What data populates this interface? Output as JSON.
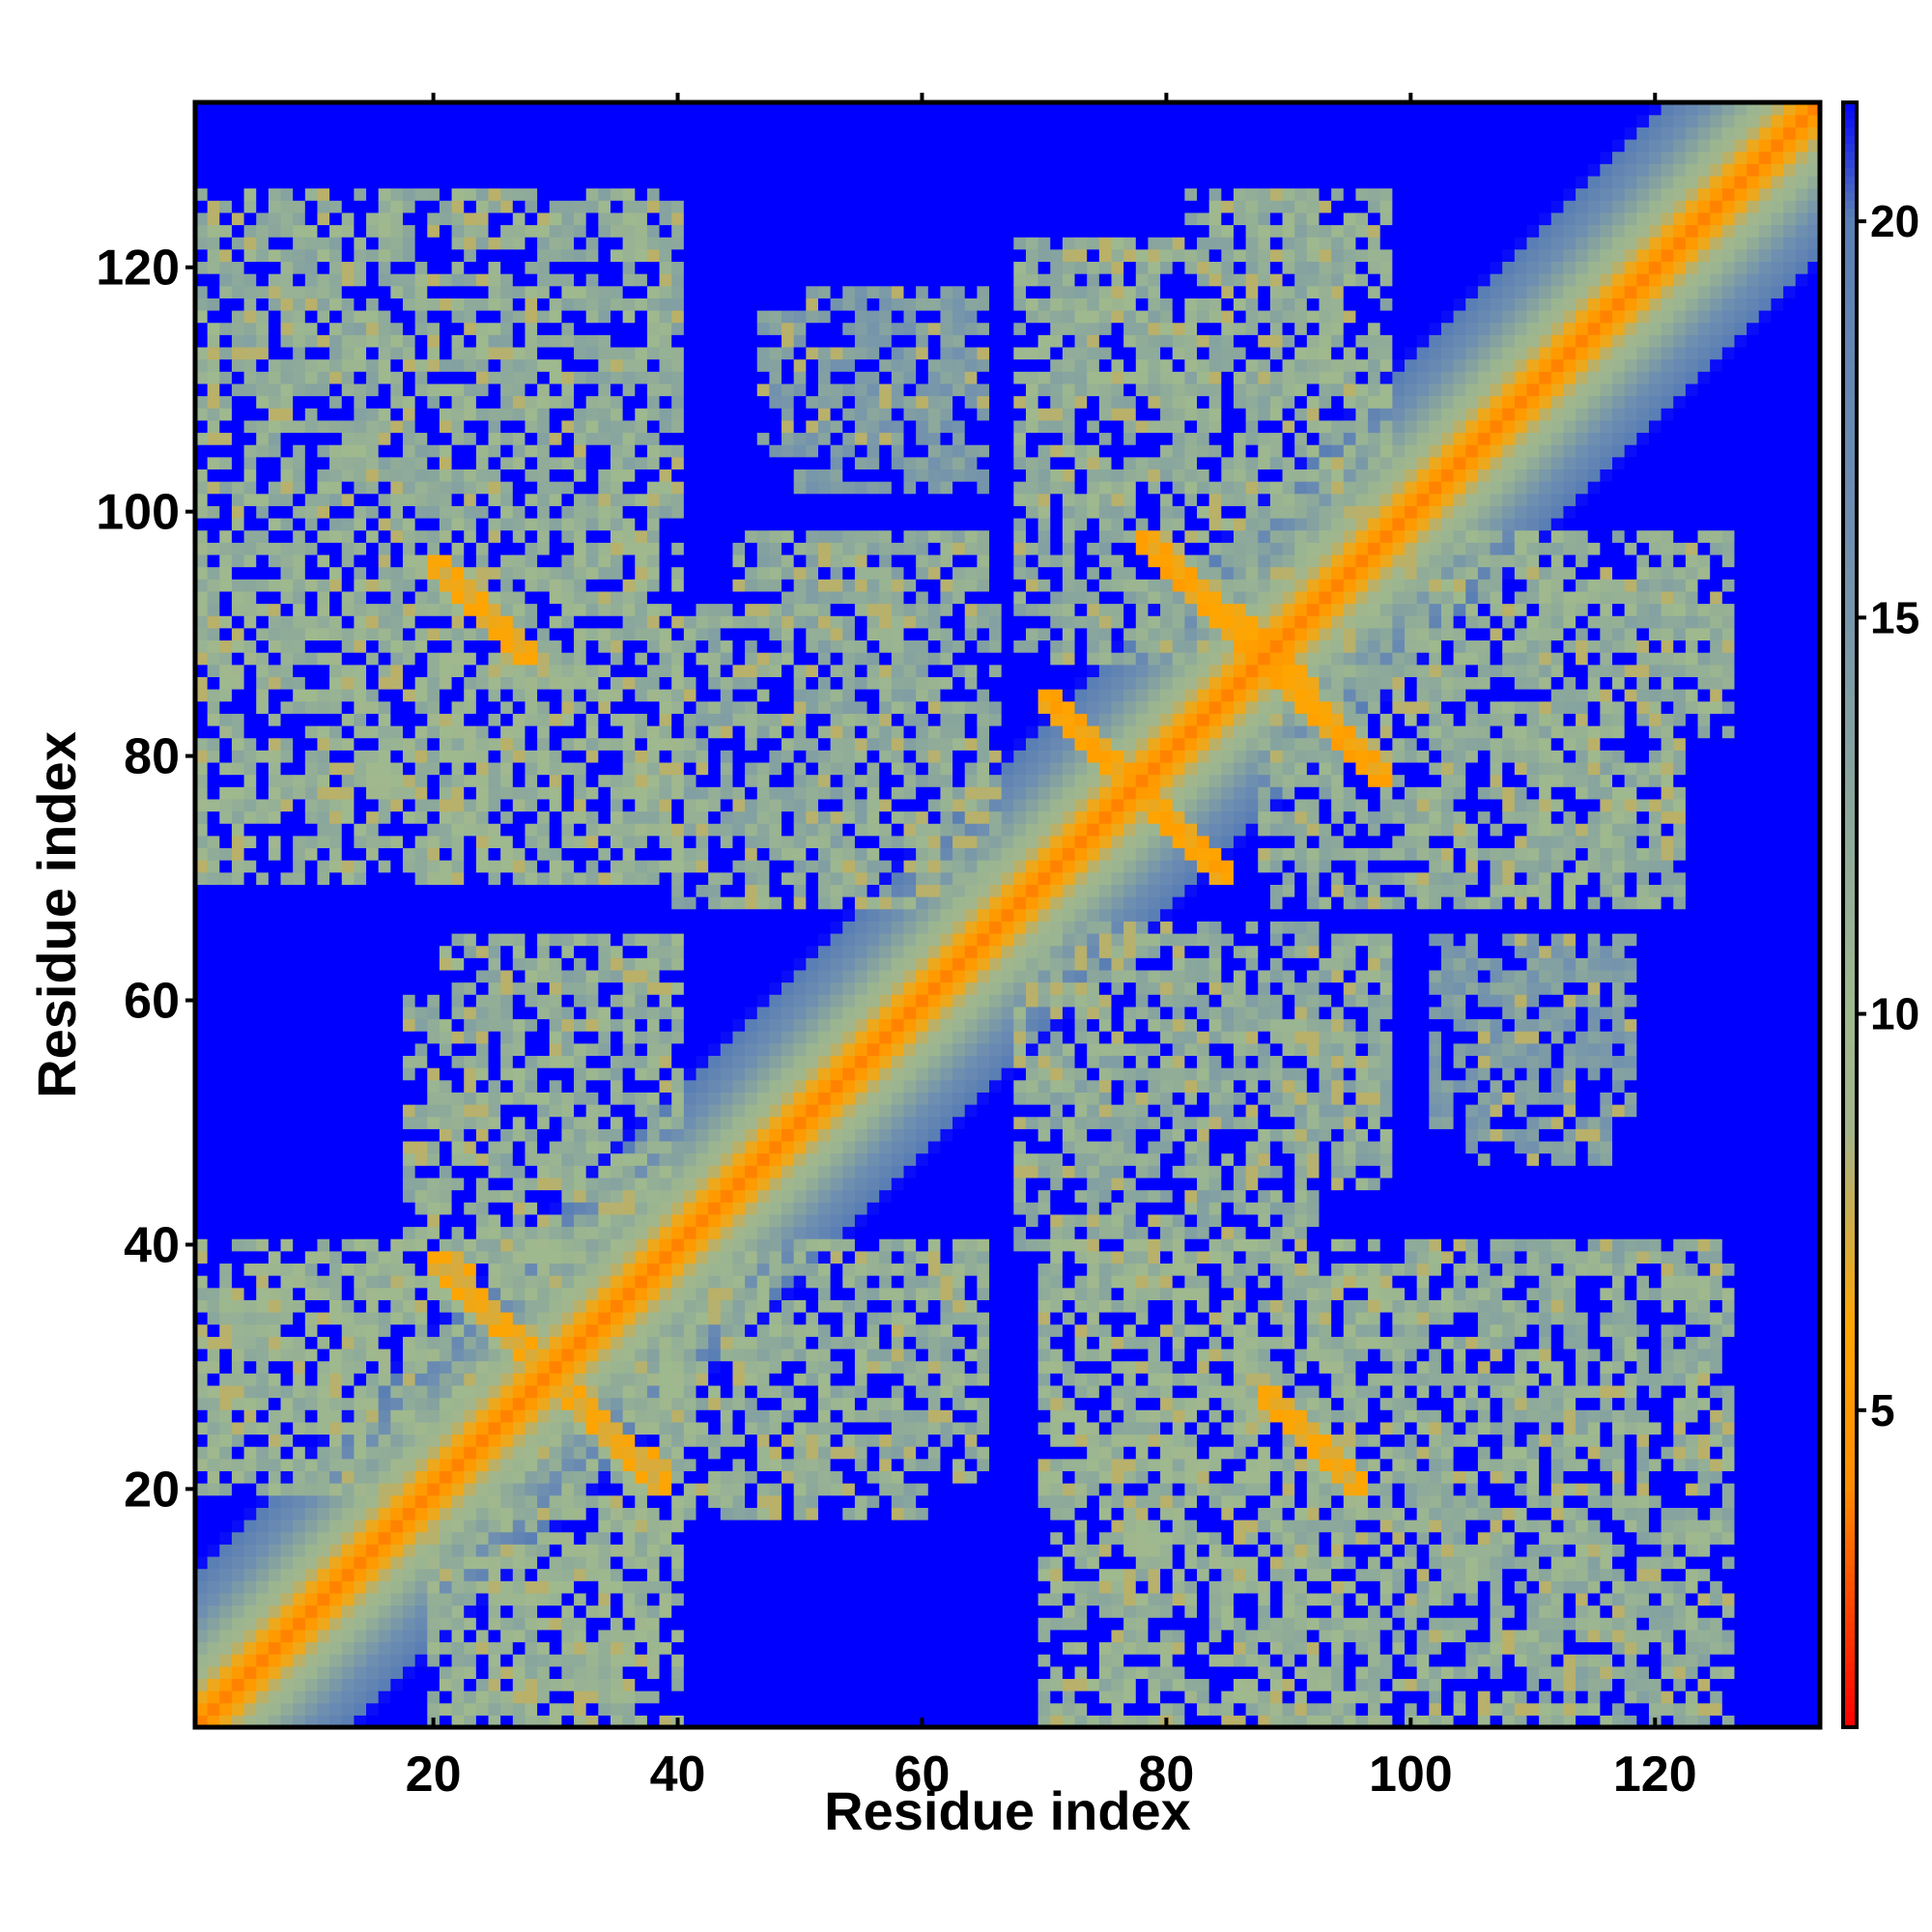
{
  "chart_data": {
    "type": "heatmap",
    "title": "",
    "xlabel": "Residue index",
    "ylabel": "Residue index",
    "n_residues": 133,
    "xlim": [
      1,
      133
    ],
    "ylim": [
      1,
      133
    ],
    "xticks": [
      20,
      40,
      60,
      80,
      100,
      120
    ],
    "yticks": [
      20,
      40,
      60,
      80,
      100,
      120
    ],
    "x_tick_labels": [
      "20",
      "40",
      "60",
      "80",
      "100",
      "120"
    ],
    "y_tick_labels": [
      "20",
      "40",
      "60",
      "80",
      "100",
      "120"
    ],
    "colorbar": {
      "range": [
        1,
        21.5
      ],
      "ticks": [
        5,
        10,
        15,
        20
      ],
      "tick_labels": [
        "5",
        "10",
        "15",
        "20"
      ],
      "colors": [
        "#ff0000",
        "#ff8c00",
        "#ffa500",
        "#a3b48b",
        "#9fb98e",
        "#6f8fb0",
        "#5a7fb5",
        "#0000ff"
      ],
      "value_stops": [
        1,
        4,
        6,
        8.5,
        10,
        16,
        20,
        21.5
      ]
    },
    "symmetric": true,
    "diagonal_band": {
      "distance_at_diagonal": 3.8,
      "growth_per_residue": 1.35
    },
    "contact_features": [
      {
        "type": "antiparallel",
        "x_range": [
          20,
          28
        ],
        "y_range": [
          88,
          96
        ],
        "value": 6.5
      },
      {
        "type": "antiparallel",
        "x_range": [
          20,
          28
        ],
        "y_range": [
          31,
          39
        ],
        "value": 6.5
      },
      {
        "type": "antiparallel",
        "x_range": [
          30,
          39
        ],
        "y_range": [
          21,
          29
        ],
        "value": 6.5
      },
      {
        "type": "antiparallel",
        "x_range": [
          71,
          85
        ],
        "y_range": [
          70,
          84
        ],
        "value": 6.0
      },
      {
        "type": "antiparallel",
        "x_range": [
          78,
          87
        ],
        "y_range": [
          89,
          98
        ],
        "value": 6.0
      },
      {
        "type": "antiparallel",
        "x_range": [
          89,
          98
        ],
        "y_range": [
          78,
          88
        ],
        "value": 6.0
      },
      {
        "type": "antiparallel",
        "x_range": [
          88,
          96
        ],
        "y_range": [
          20,
          28
        ],
        "value": 6.5
      }
    ],
    "contact_regions": [
      {
        "x_range": [
          1,
          38
        ],
        "y_range": [
          100,
          126
        ],
        "value": 11.5
      },
      {
        "x_range": [
          1,
          40
        ],
        "y_range": [
          70,
          98
        ],
        "value": 11
      },
      {
        "x_range": [
          1,
          32
        ],
        "y_range": [
          20,
          40
        ],
        "value": 11
      },
      {
        "x_range": [
          20,
          40
        ],
        "y_range": [
          40,
          65
        ],
        "value": 11.5
      },
      {
        "x_range": [
          20,
          40
        ],
        "y_range": [
          4,
          20
        ],
        "value": 11.5
      },
      {
        "x_range": [
          45,
          65
        ],
        "y_range": [
          68,
          98
        ],
        "value": 12
      },
      {
        "x_range": [
          47,
          62
        ],
        "y_range": [
          105,
          116
        ],
        "value": 14
      },
      {
        "x_range": [
          40,
          60
        ],
        "y_range": [
          18,
          40
        ],
        "value": 12
      },
      {
        "x_range": [
          68,
          92
        ],
        "y_range": [
          40,
          66
        ],
        "value": 12
      },
      {
        "x_range": [
          68,
          85
        ],
        "y_range": [
          88,
          116
        ],
        "value": 12
      },
      {
        "x_range": [
          82,
          98
        ],
        "y_range": [
          94,
          126
        ],
        "value": 11.5
      },
      {
        "x_range": [
          98,
          122
        ],
        "y_range": [
          68,
          98
        ],
        "value": 11.5
      },
      {
        "x_range": [
          102,
          118
        ],
        "y_range": [
          50,
          65
        ],
        "value": 14
      },
      {
        "x_range": [
          75,
          100
        ],
        "y_range": [
          4,
          38
        ],
        "value": 11.5
      },
      {
        "x_range": [
          100,
          125
        ],
        "y_range": [
          4,
          40
        ],
        "value": 12
      }
    ]
  }
}
